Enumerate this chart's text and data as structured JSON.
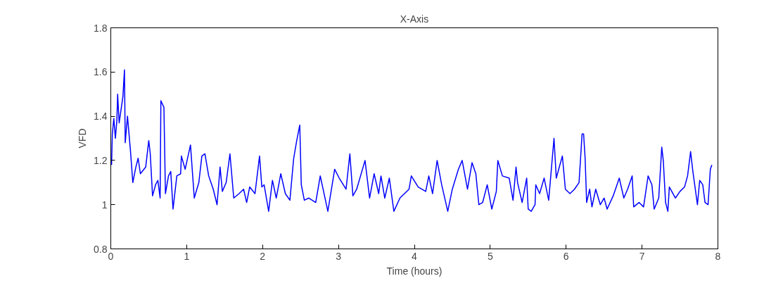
{
  "chart_data": {
    "type": "line",
    "title": "X-Axis",
    "xlabel": "Time (hours)",
    "ylabel": "VFD",
    "xlim": [
      0,
      8
    ],
    "xticks": [
      0,
      1,
      2,
      3,
      4,
      5,
      6,
      7,
      8
    ],
    "ylim": [
      0.8,
      1.8
    ],
    "yticks": [
      0.8,
      1,
      1.2,
      1.4,
      1.6,
      1.8
    ],
    "grid": false,
    "marker": "none",
    "line_style": "solid",
    "series": [
      {
        "color": "#0000ff",
        "x": [
          0.01,
          0.02,
          0.04,
          0.06,
          0.08,
          0.09,
          0.11,
          0.16,
          0.18,
          0.19,
          0.22,
          0.26,
          0.29,
          0.33,
          0.36,
          0.39,
          0.46,
          0.5,
          0.52,
          0.55,
          0.59,
          0.62,
          0.65,
          0.66,
          0.7,
          0.72,
          0.76,
          0.79,
          0.82,
          0.87,
          0.92,
          0.93,
          0.98,
          1.05,
          1.1,
          1.16,
          1.2,
          1.24,
          1.29,
          1.35,
          1.4,
          1.44,
          1.47,
          1.52,
          1.57,
          1.62,
          1.69,
          1.75,
          1.79,
          1.83,
          1.9,
          1.96,
          1.99,
          2.02,
          2.08,
          2.13,
          2.18,
          2.24,
          2.3,
          2.36,
          2.41,
          2.45,
          2.49,
          2.51,
          2.55,
          2.61,
          2.7,
          2.76,
          2.86,
          2.95,
          3.01,
          3.1,
          3.15,
          3.19,
          3.24,
          3.35,
          3.41,
          3.47,
          3.53,
          3.56,
          3.61,
          3.67,
          3.73,
          3.81,
          3.93,
          3.96,
          4.05,
          4.15,
          4.19,
          4.24,
          4.3,
          4.36,
          4.44,
          4.5,
          4.58,
          4.63,
          4.7,
          4.76,
          4.81,
          4.85,
          4.9,
          4.96,
          5.02,
          5.08,
          5.1,
          5.16,
          5.25,
          5.3,
          5.34,
          5.36,
          5.42,
          5.48,
          5.5,
          5.54,
          5.59,
          5.6,
          5.65,
          5.71,
          5.77,
          5.84,
          5.87,
          5.91,
          5.95,
          5.99,
          6.05,
          6.11,
          6.17,
          6.21,
          6.23,
          6.25,
          6.27,
          6.31,
          6.34,
          6.39,
          6.45,
          6.5,
          6.54,
          6.62,
          6.7,
          6.76,
          6.81,
          6.87,
          6.89,
          6.96,
          7.02,
          7.08,
          7.13,
          7.16,
          7.22,
          7.26,
          7.28,
          7.31,
          7.34,
          7.36,
          7.44,
          7.5,
          7.56,
          7.6,
          7.64,
          7.67,
          7.73,
          7.76,
          7.8,
          7.83,
          7.87,
          7.9,
          7.92
        ],
        "values": [
          1.18,
          1.32,
          1.39,
          1.3,
          1.38,
          1.5,
          1.37,
          1.49,
          1.61,
          1.28,
          1.4,
          1.24,
          1.1,
          1.17,
          1.21,
          1.14,
          1.17,
          1.29,
          1.23,
          1.04,
          1.09,
          1.11,
          1.03,
          1.47,
          1.44,
          1.05,
          1.13,
          1.15,
          0.98,
          1.13,
          1.14,
          1.22,
          1.16,
          1.27,
          1.03,
          1.1,
          1.22,
          1.23,
          1.13,
          1.07,
          1.0,
          1.17,
          1.06,
          1.1,
          1.23,
          1.03,
          1.05,
          1.07,
          1.01,
          1.08,
          1.05,
          1.22,
          1.08,
          1.09,
          0.97,
          1.11,
          1.03,
          1.14,
          1.05,
          1.02,
          1.21,
          1.29,
          1.36,
          1.09,
          1.02,
          1.03,
          1.01,
          1.13,
          0.97,
          1.16,
          1.12,
          1.07,
          1.23,
          1.04,
          1.07,
          1.2,
          1.03,
          1.14,
          1.05,
          1.13,
          1.03,
          1.12,
          0.97,
          1.03,
          1.07,
          1.13,
          1.08,
          1.06,
          1.13,
          1.05,
          1.2,
          1.09,
          0.97,
          1.07,
          1.16,
          1.2,
          1.07,
          1.19,
          1.14,
          1.0,
          1.01,
          1.09,
          0.98,
          1.06,
          1.2,
          1.13,
          1.12,
          1.02,
          1.17,
          1.1,
          1.01,
          1.12,
          0.98,
          0.97,
          1.0,
          1.09,
          1.05,
          1.12,
          1.02,
          1.3,
          1.12,
          1.17,
          1.22,
          1.07,
          1.05,
          1.07,
          1.1,
          1.32,
          1.32,
          1.21,
          1.01,
          1.07,
          0.99,
          1.07,
          1.0,
          1.03,
          0.98,
          1.04,
          1.12,
          1.03,
          1.07,
          1.13,
          0.99,
          1.01,
          0.99,
          1.13,
          1.09,
          0.98,
          1.03,
          1.26,
          1.2,
          1.01,
          0.97,
          1.08,
          1.03,
          1.06,
          1.08,
          1.13,
          1.24,
          1.15,
          1.0,
          1.11,
          1.09,
          1.01,
          1.0,
          1.16,
          1.18
        ]
      }
    ]
  }
}
